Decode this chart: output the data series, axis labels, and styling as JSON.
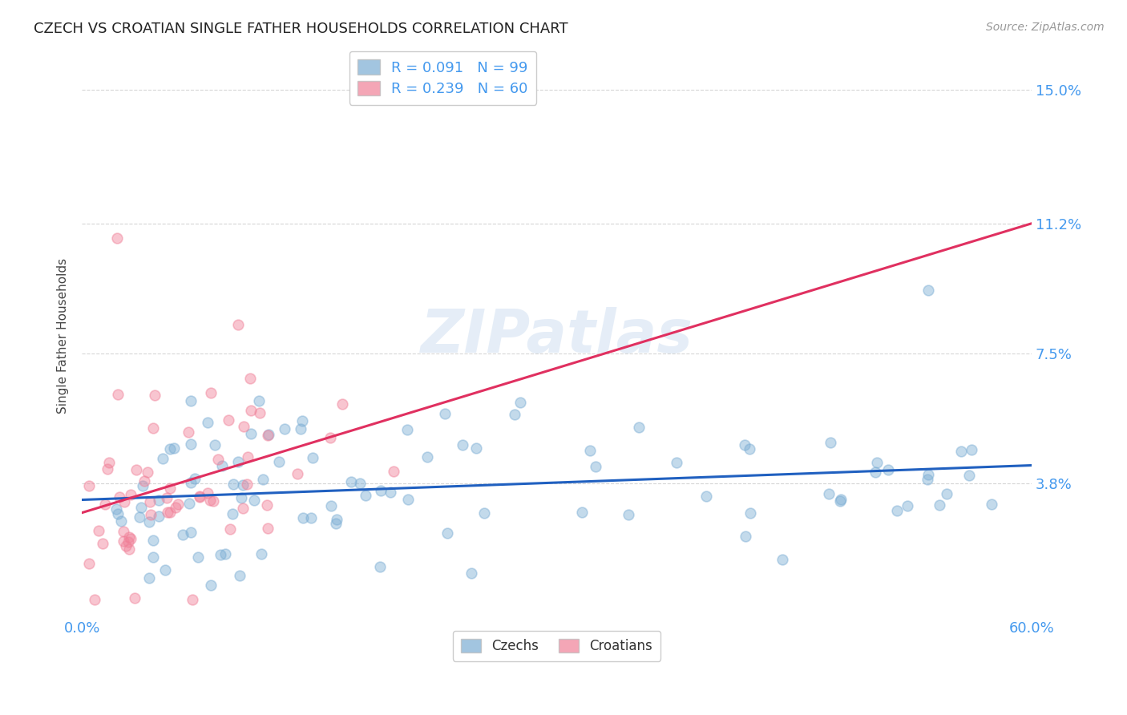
{
  "title": "CZECH VS CROATIAN SINGLE FATHER HOUSEHOLDS CORRELATION CHART",
  "source": "Source: ZipAtlas.com",
  "ylabel_label": "Single Father Households",
  "legend_bottom": [
    "Czechs",
    "Croatians"
  ],
  "czech_color": "#7badd4",
  "croatian_color": "#f08098",
  "czech_line_color": "#2060c0",
  "croatian_line_color": "#e03060",
  "background_color": "#ffffff",
  "grid_color": "#cccccc",
  "axis_label_color": "#4499ee",
  "title_color": "#222222",
  "watermark": "ZIPatlas",
  "xlim": [
    0.0,
    0.6
  ],
  "ylim": [
    0.0,
    0.16
  ],
  "yticks": [
    0.038,
    0.075,
    0.112,
    0.15
  ],
  "ytick_labels": [
    "3.8%",
    "7.5%",
    "11.2%",
    "15.0%"
  ],
  "xtick_labels": [
    "0.0%",
    "60.0%"
  ],
  "xticks": [
    0.0,
    0.6
  ],
  "czech_R": 0.091,
  "czech_N": 99,
  "croatian_R": 0.239,
  "croatian_N": 60
}
